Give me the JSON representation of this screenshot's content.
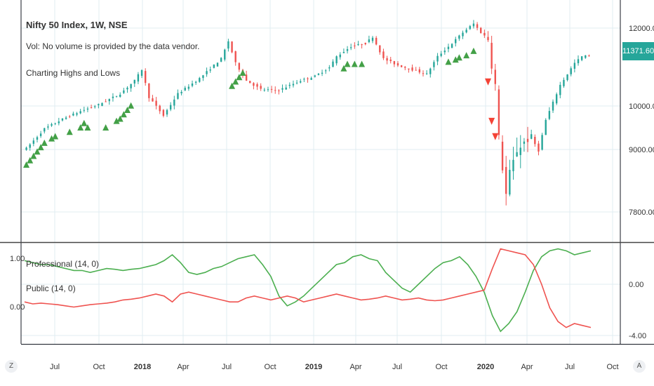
{
  "header": {
    "title": "Nifty 50 Index, 1W, NSE",
    "volume_note": "Vol: No volume is provided by the data vendor.",
    "indicator": "Charting Highs and Lows"
  },
  "last_price": "11371.60",
  "corner_left": "Z",
  "corner_right": "A",
  "colors": {
    "up": "#26a69a",
    "down": "#ef5350",
    "green_line": "#4caf50",
    "red_line": "#ef5350",
    "buy": "#43a047",
    "sell": "#f44336",
    "badge": "#26a69a",
    "grid": "#e1ecf2"
  },
  "chart_data": [
    {
      "type": "candlestick",
      "title": "Nifty 50 Index, 1W, NSE",
      "y_ticks": [
        "12000.00",
        "10000.00",
        "9000.00",
        "7800.00"
      ],
      "x_ticks": [
        "Jul",
        "Oct",
        "2018",
        "Apr",
        "Jul",
        "Oct",
        "2019",
        "Apr",
        "Jul",
        "Oct",
        "2020",
        "Apr",
        "Jul",
        "Oct"
      ],
      "ylim": [
        7000,
        12500
      ],
      "last_value": 11371.6,
      "close_path": [
        [
          0,
          9250
        ],
        [
          5,
          9700
        ],
        [
          10,
          9920
        ],
        [
          15,
          10100
        ],
        [
          20,
          10250
        ],
        [
          26,
          10500
        ],
        [
          30,
          10800
        ],
        [
          32,
          11050
        ],
        [
          34,
          10420
        ],
        [
          38,
          10000
        ],
        [
          42,
          10500
        ],
        [
          48,
          10850
        ],
        [
          54,
          11300
        ],
        [
          56,
          11700
        ],
        [
          58,
          11200
        ],
        [
          61,
          10800
        ],
        [
          65,
          10600
        ],
        [
          70,
          10580
        ],
        [
          76,
          10800
        ],
        [
          80,
          10900
        ],
        [
          84,
          11100
        ],
        [
          86,
          11350
        ],
        [
          90,
          11580
        ],
        [
          94,
          11650
        ],
        [
          96,
          11800
        ],
        [
          99,
          11300
        ],
        [
          103,
          11150
        ],
        [
          107,
          11050
        ],
        [
          111,
          10950
        ],
        [
          114,
          11350
        ],
        [
          118,
          11650
        ],
        [
          121,
          11900
        ],
        [
          124,
          12100
        ],
        [
          126,
          11900
        ],
        [
          128,
          11750
        ],
        [
          129,
          11150
        ],
        [
          130,
          10700
        ],
        [
          131,
          9500
        ],
        [
          132,
          8800
        ],
        [
          133,
          8200
        ],
        [
          134,
          8700
        ],
        [
          136,
          9200
        ],
        [
          138,
          9400
        ],
        [
          140,
          9500
        ],
        [
          142,
          9200
        ],
        [
          144,
          9900
        ],
        [
          146,
          10300
        ],
        [
          148,
          10700
        ],
        [
          150,
          10950
        ],
        [
          152,
          11200
        ],
        [
          154,
          11350
        ],
        [
          156,
          11371.6
        ]
      ],
      "buy_signals": [
        [
          0,
          9050
        ],
        [
          1,
          9150
        ],
        [
          2,
          9250
        ],
        [
          3,
          9350
        ],
        [
          4,
          9450
        ],
        [
          5,
          9550
        ],
        [
          7,
          9650
        ],
        [
          8,
          9700
        ],
        [
          12,
          9800
        ],
        [
          15,
          9900
        ],
        [
          16,
          10000
        ],
        [
          17,
          9900
        ],
        [
          22,
          9900
        ],
        [
          25,
          10050
        ],
        [
          26,
          10100
        ],
        [
          27,
          10200
        ],
        [
          28,
          10300
        ],
        [
          29,
          10400
        ],
        [
          57,
          10850
        ],
        [
          58,
          10950
        ],
        [
          59,
          11050
        ],
        [
          60,
          11150
        ],
        [
          88,
          11250
        ],
        [
          89,
          11350
        ],
        [
          91,
          11350
        ],
        [
          93,
          11350
        ],
        [
          117,
          11400
        ],
        [
          119,
          11450
        ],
        [
          120,
          11500
        ],
        [
          122,
          11550
        ],
        [
          124,
          11650
        ]
      ],
      "sell_signals": [
        [
          128,
          10850
        ],
        [
          129,
          9950
        ],
        [
          130,
          9600
        ]
      ]
    },
    {
      "type": "line",
      "y_ticks": [
        "1.00",
        "0.00",
        "0.00",
        "-4.00"
      ],
      "series": [
        {
          "name": "Professional (14, 0)",
          "values": [
            0.6,
            0.55,
            0.5,
            0.5,
            0.45,
            0.4,
            0.35,
            0.35,
            0.3,
            0.35,
            0.4,
            0.38,
            0.35,
            0.38,
            0.4,
            0.45,
            0.5,
            0.6,
            0.75,
            0.55,
            0.3,
            0.25,
            0.3,
            0.4,
            0.45,
            0.55,
            0.65,
            0.7,
            0.75,
            0.5,
            0.2,
            -0.3,
            -0.55,
            -0.45,
            -0.3,
            -0.1,
            0.1,
            0.3,
            0.5,
            0.55,
            0.7,
            0.75,
            0.65,
            0.6,
            0.3,
            0.1,
            -0.1,
            -0.2,
            0.0,
            0.2,
            0.4,
            0.55,
            0.6,
            0.7,
            0.5,
            0.2,
            -0.2,
            -0.8,
            -1.2,
            -1.0,
            -0.7,
            -0.2,
            0.35,
            0.7,
            0.85,
            0.9,
            0.85,
            0.75,
            0.8,
            0.85
          ]
        },
        {
          "name": "Public (14, 0)",
          "values": [
            -0.45,
            -0.5,
            -0.48,
            -0.5,
            -0.52,
            -0.55,
            -0.58,
            -0.55,
            -0.52,
            -0.5,
            -0.48,
            -0.45,
            -0.4,
            -0.38,
            -0.35,
            -0.3,
            -0.25,
            -0.3,
            -0.45,
            -0.25,
            -0.2,
            -0.25,
            -0.3,
            -0.35,
            -0.4,
            -0.45,
            -0.45,
            -0.35,
            -0.3,
            -0.35,
            -0.4,
            -0.35,
            -0.3,
            -0.35,
            -0.45,
            -0.4,
            -0.35,
            -0.3,
            -0.25,
            -0.3,
            -0.35,
            -0.4,
            -0.38,
            -0.35,
            -0.3,
            -0.35,
            -0.4,
            -0.38,
            -0.35,
            -0.4,
            -0.42,
            -0.4,
            -0.35,
            -0.3,
            -0.25,
            -0.2,
            -0.15,
            0.4,
            0.9,
            0.85,
            0.8,
            0.75,
            0.5,
            0.0,
            -0.6,
            -0.95,
            -1.1,
            -1.0,
            -1.05,
            -1.1
          ]
        }
      ]
    }
  ]
}
